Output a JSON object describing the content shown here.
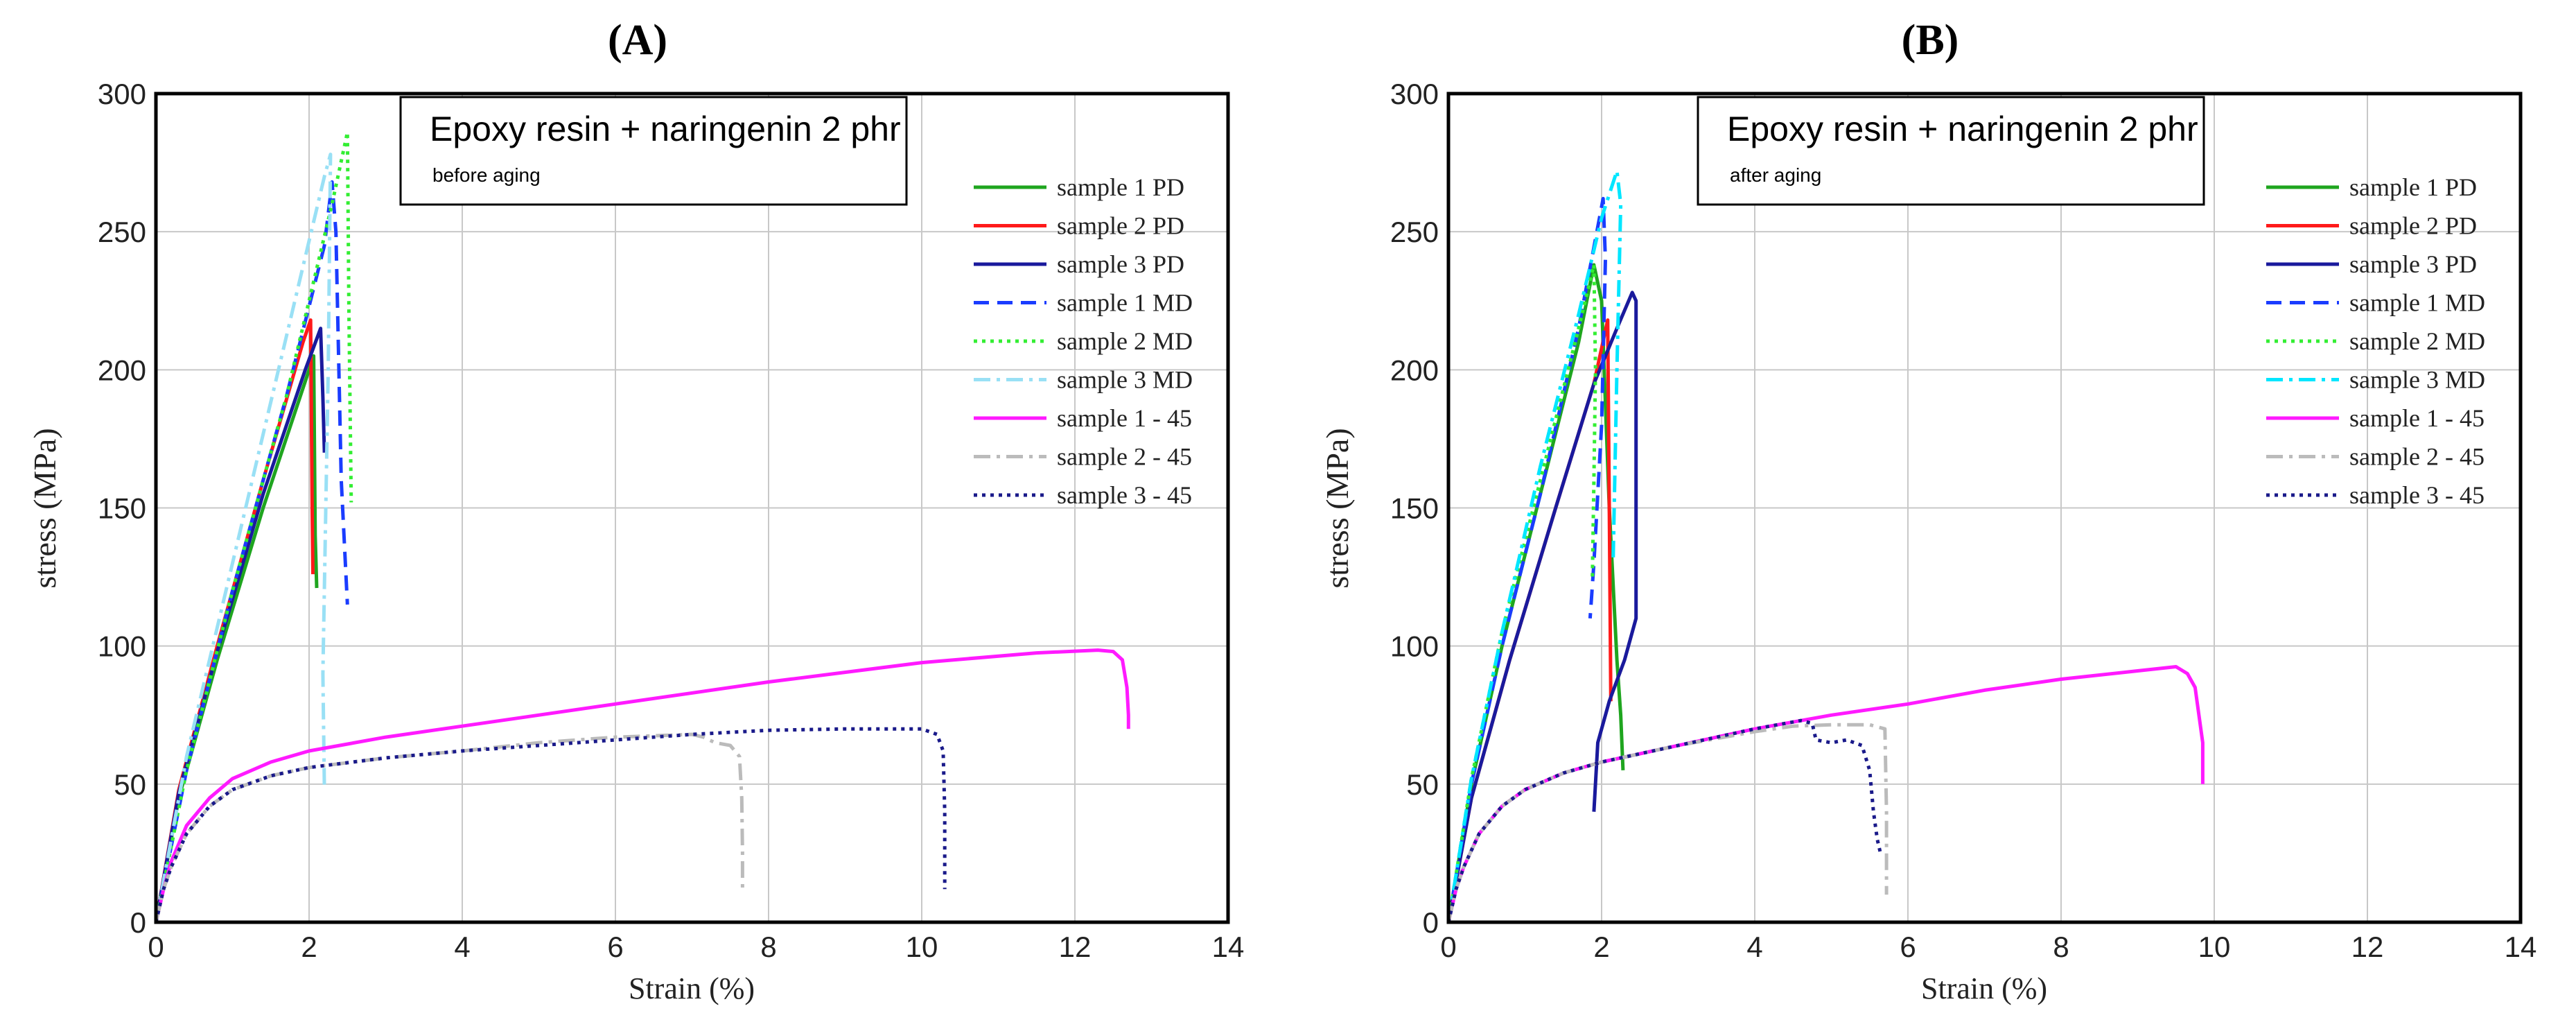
{
  "chart_data": [
    {
      "type": "line",
      "panel_label": "(A)",
      "box_title": "Epoxy resin + naringenin 2 phr",
      "box_subtitle": "before aging",
      "xlabel": "Strain (%)",
      "ylabel": "stress (MPa)",
      "xlim": [
        0,
        14
      ],
      "ylim": [
        0,
        300
      ],
      "xticks": [
        "0",
        "2",
        "4",
        "6",
        "8",
        "10",
        "12",
        "14"
      ],
      "yticks": [
        "0",
        "50",
        "100",
        "150",
        "200",
        "250",
        "300"
      ],
      "grid": true,
      "legend_position": "top-right",
      "series": [
        {
          "name": "sample 1 PD",
          "color": "#1fa51f",
          "dash": "solid",
          "x": [
            0,
            0.3,
            0.8,
            1.4,
            2.0,
            2.06,
            2.08,
            2.1
          ],
          "y": [
            0,
            45,
            95,
            150,
            200,
            205,
            140,
            121
          ]
        },
        {
          "name": "sample 2 PD",
          "color": "#ff1a1a",
          "dash": "solid",
          "x": [
            0,
            0.3,
            0.8,
            1.4,
            1.92,
            2.02,
            2.04,
            2.05
          ],
          "y": [
            0,
            48,
            100,
            160,
            210,
            218,
            150,
            126
          ]
        },
        {
          "name": "sample 3 PD",
          "color": "#1a1a9c",
          "dash": "solid",
          "x": [
            0,
            0.3,
            0.8,
            1.4,
            1.95,
            2.15,
            2.18,
            2.2
          ],
          "y": [
            0,
            47,
            98,
            155,
            200,
            215,
            190,
            170
          ]
        },
        {
          "name": "sample 1 MD",
          "color": "#1a3cff",
          "dash": "dash",
          "x": [
            0,
            0.4,
            1.0,
            1.7,
            2.2,
            2.3,
            2.35,
            2.42,
            2.5
          ],
          "y": [
            0,
            55,
            120,
            190,
            245,
            268,
            250,
            160,
            115
          ]
        },
        {
          "name": "sample 2 MD",
          "color": "#33ee33",
          "dash": "dot",
          "x": [
            0,
            0.4,
            1.0,
            1.7,
            2.3,
            2.5,
            2.52,
            2.55
          ],
          "y": [
            0,
            55,
            120,
            190,
            260,
            286,
            220,
            152
          ]
        },
        {
          "name": "sample 3 MD",
          "color": "#99e0f5",
          "dash": "dashdot",
          "x": [
            0,
            0.4,
            1.0,
            1.6,
            2.2,
            2.28,
            2.25,
            2.18,
            2.2
          ],
          "y": [
            0,
            60,
            130,
            200,
            270,
            278,
            200,
            90,
            48
          ]
        },
        {
          "name": "sample 1 - 45",
          "color": "#ff1aff",
          "dash": "solid",
          "x": [
            0,
            0.1,
            0.2,
            0.4,
            0.7,
            1.0,
            1.5,
            2.0,
            3.0,
            4.0,
            6.0,
            8.0,
            10.0,
            11.5,
            12.3,
            12.5,
            12.62,
            12.68,
            12.7,
            12.7
          ],
          "y": [
            0,
            12,
            22,
            35,
            45,
            52,
            58,
            62,
            67,
            71,
            79,
            87,
            94,
            97.5,
            98.5,
            98,
            95,
            85,
            75,
            70
          ]
        },
        {
          "name": "sample 2 - 45",
          "color": "#bbbbbb",
          "dash": "dashdot",
          "x": [
            0,
            0.1,
            0.2,
            0.4,
            0.7,
            1.0,
            1.5,
            2.0,
            3.0,
            4.0,
            5.0,
            6.0,
            7.0,
            7.15,
            7.3,
            7.5,
            7.62,
            7.65,
            7.66,
            7.66
          ],
          "y": [
            0,
            12,
            20,
            32,
            42,
            48,
            53,
            56,
            59.5,
            62,
            65,
            67,
            68,
            67,
            65,
            64,
            60,
            45,
            25,
            12
          ]
        },
        {
          "name": "sample 3 - 45",
          "color": "#1a1a8a",
          "dash": "dot",
          "x": [
            0,
            0.1,
            0.2,
            0.4,
            0.7,
            1.0,
            1.5,
            2.0,
            3.0,
            4.0,
            5.0,
            6.0,
            7.0,
            8.0,
            9.0,
            10.0,
            10.2,
            10.28,
            10.3,
            10.3
          ],
          "y": [
            0,
            12,
            20,
            32,
            42,
            48,
            53,
            56,
            59.5,
            62,
            64,
            66,
            68,
            69.5,
            70,
            70,
            68,
            62,
            40,
            12
          ]
        }
      ]
    },
    {
      "type": "line",
      "panel_label": "(B)",
      "box_title": "Epoxy resin + naringenin 2 phr",
      "box_subtitle": "after aging",
      "xlabel": "Strain (%)",
      "ylabel": "stress (MPa)",
      "xlim": [
        0,
        14
      ],
      "ylim": [
        0,
        300
      ],
      "xticks": [
        "0",
        "2",
        "4",
        "6",
        "8",
        "10",
        "12",
        "14"
      ],
      "yticks": [
        "0",
        "50",
        "100",
        "150",
        "200",
        "250",
        "300"
      ],
      "grid": true,
      "legend_position": "top-right",
      "series": [
        {
          "name": "sample 1 PD",
          "color": "#1fa51f",
          "dash": "solid",
          "x": [
            0,
            0.3,
            0.7,
            1.2,
            1.7,
            1.9,
            2.0,
            2.1,
            2.2,
            2.25,
            2.28
          ],
          "y": [
            0,
            50,
            100,
            155,
            210,
            238,
            225,
            150,
            95,
            75,
            55
          ]
        },
        {
          "name": "sample 2 PD",
          "color": "#ff1a1a",
          "dash": "solid",
          "x": [
            0,
            0.3,
            0.8,
            1.4,
            1.9,
            2.08,
            2.1,
            2.12
          ],
          "y": [
            0,
            45,
            95,
            150,
            195,
            218,
            150,
            80
          ]
        },
        {
          "name": "sample 3 PD",
          "color": "#1a1a9c",
          "dash": "solid",
          "x": [
            0,
            0.3,
            0.8,
            1.4,
            1.9,
            2.2,
            2.4,
            2.45,
            2.45,
            2.3,
            2.1,
            1.95,
            1.9
          ],
          "y": [
            0,
            45,
            95,
            150,
            195,
            215,
            228,
            225,
            110,
            95,
            80,
            65,
            40
          ]
        },
        {
          "name": "sample 1 MD",
          "color": "#1a3cff",
          "dash": "dash",
          "x": [
            0,
            0.3,
            0.7,
            1.2,
            1.7,
            2.02,
            2.05,
            2.0,
            1.9,
            1.85
          ],
          "y": [
            0,
            50,
            100,
            155,
            215,
            262,
            240,
            180,
            130,
            110
          ]
        },
        {
          "name": "sample 2 MD",
          "color": "#33ee33",
          "dash": "dot",
          "x": [
            0,
            0.3,
            0.7,
            1.2,
            1.7,
            1.9,
            1.92,
            1.9,
            1.88
          ],
          "y": [
            0,
            52,
            105,
            160,
            215,
            238,
            200,
            160,
            125
          ]
        },
        {
          "name": "sample 3 MD",
          "color": "#00e6ff",
          "dash": "dashdot",
          "x": [
            0,
            0.3,
            0.7,
            1.2,
            1.7,
            2.0,
            2.2,
            2.25,
            2.2,
            2.15
          ],
          "y": [
            0,
            52,
            105,
            165,
            220,
            255,
            272,
            260,
            200,
            130
          ]
        },
        {
          "name": "sample 1 - 45",
          "color": "#ff1aff",
          "dash": "solid",
          "x": [
            0,
            0.1,
            0.2,
            0.4,
            0.7,
            1.0,
            1.5,
            2.0,
            3.0,
            4.0,
            5.0,
            6.0,
            7.0,
            8.0,
            9.0,
            9.5,
            9.65,
            9.75,
            9.8,
            9.85,
            9.85
          ],
          "y": [
            0,
            12,
            20,
            32,
            42,
            48,
            54,
            58,
            64,
            70,
            75,
            79,
            84,
            88,
            91,
            92.5,
            90,
            85,
            75,
            65,
            50
          ]
        },
        {
          "name": "sample 2 - 45",
          "color": "#bbbbbb",
          "dash": "dashdot",
          "x": [
            0,
            0.1,
            0.2,
            0.4,
            0.7,
            1.0,
            1.5,
            2.0,
            3.0,
            4.0,
            4.5,
            5.0,
            5.5,
            5.7,
            5.72,
            5.72
          ],
          "y": [
            0,
            12,
            20,
            32,
            42,
            48,
            54,
            58,
            64,
            69,
            71,
            71.5,
            71.5,
            70,
            40,
            10
          ]
        },
        {
          "name": "sample 3 - 45",
          "color": "#1a1a8a",
          "dash": "dot",
          "x": [
            0,
            0.1,
            0.2,
            0.4,
            0.7,
            1.0,
            1.5,
            2.0,
            3.0,
            4.0,
            4.6,
            4.75,
            4.8,
            5.0,
            5.2,
            5.4,
            5.5,
            5.55,
            5.6,
            5.65
          ],
          "y": [
            0,
            12,
            20,
            32,
            42,
            48,
            54,
            58,
            64,
            70,
            73,
            72,
            66,
            65,
            66,
            64,
            55,
            40,
            30,
            24
          ]
        }
      ]
    }
  ]
}
